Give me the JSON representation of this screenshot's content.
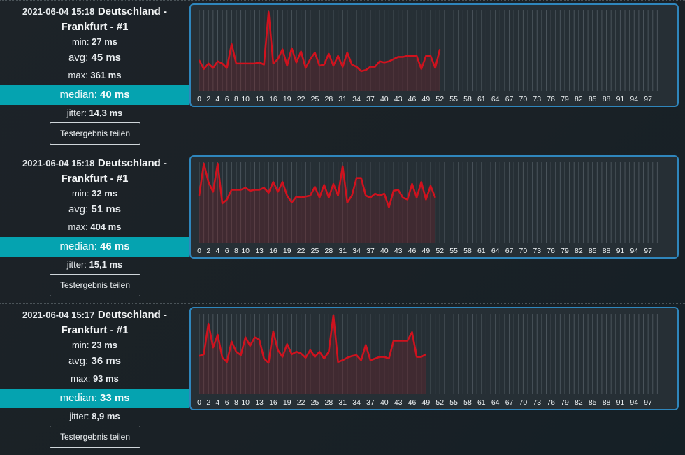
{
  "results": [
    {
      "date": "2021-06-04 15:18",
      "location": "Deutschland - Frankfurt - #1",
      "min_label": "min:",
      "min_value": "27 ms",
      "avg_label": "avg:",
      "avg_value": "45 ms",
      "max_label": "max:",
      "max_value": "361 ms",
      "median_label": "median:",
      "median_value": "40 ms",
      "jitter_label": "jitter:",
      "jitter_value": "14,3 ms",
      "share_label": "Testergebnis teilen"
    },
    {
      "date": "2021-06-04 15:18",
      "location": "Deutschland - Frankfurt - #1",
      "min_label": "min:",
      "min_value": "32 ms",
      "avg_label": "avg:",
      "avg_value": "51 ms",
      "max_label": "max:",
      "max_value": "404 ms",
      "median_label": "median:",
      "median_value": "46 ms",
      "jitter_label": "jitter:",
      "jitter_value": "15,1 ms",
      "share_label": "Testergebnis teilen"
    },
    {
      "date": "2021-06-04 15:17",
      "location": "Deutschland - Frankfurt - #1",
      "min_label": "min:",
      "min_value": "23 ms",
      "avg_label": "avg:",
      "avg_value": "36 ms",
      "max_label": "max:",
      "max_value": "93 ms",
      "median_label": "median:",
      "median_value": "33 ms",
      "jitter_label": "jitter:",
      "jitter_value": "8,9 ms",
      "share_label": "Testergebnis teilen"
    }
  ],
  "colors": {
    "accent": "#05a3b0",
    "chart_border": "#2f86bc",
    "line": "#d0121e",
    "area": "#4a2a30"
  },
  "chart_data": [
    {
      "type": "area",
      "ylim": [
        0,
        361
      ],
      "x_tick_labels": [
        "0",
        "2",
        "4",
        "6",
        "8",
        "10",
        "13",
        "16",
        "19",
        "22",
        "25",
        "28",
        "31",
        "34",
        "37",
        "40",
        "43",
        "46",
        "49",
        "52",
        "55",
        "58",
        "61",
        "64",
        "67",
        "70",
        "73",
        "76",
        "79",
        "82",
        "85",
        "88",
        "91",
        "94",
        "97"
      ],
      "x_slots": 100,
      "series": [
        {
          "values": [
            140,
            100,
            125,
            105,
            135,
            125,
            105,
            214,
            125,
            125,
            125,
            125,
            125,
            130,
            120,
            361,
            125,
            145,
            190,
            115,
            195,
            130,
            180,
            105,
            145,
            175,
            115,
            120,
            170,
            115,
            160,
            110,
            175,
            120,
            110,
            90,
            95,
            110,
            110,
            135,
            130,
            135,
            145,
            155,
            155,
            160,
            160,
            160,
            100,
            160,
            160,
            105,
            190
          ]
        }
      ]
    },
    {
      "type": "area",
      "ylim": [
        0,
        404
      ],
      "x_tick_labels": [
        "0",
        "2",
        "4",
        "6",
        "8",
        "10",
        "13",
        "16",
        "19",
        "22",
        "25",
        "28",
        "31",
        "34",
        "37",
        "40",
        "43",
        "46",
        "49",
        "52",
        "55",
        "58",
        "61",
        "64",
        "67",
        "70",
        "73",
        "76",
        "79",
        "82",
        "85",
        "88",
        "91",
        "94",
        "97"
      ],
      "x_slots": 100,
      "series": [
        {
          "values": [
            240,
            404,
            310,
            260,
            404,
            200,
            220,
            270,
            270,
            270,
            280,
            265,
            270,
            270,
            280,
            255,
            310,
            260,
            310,
            240,
            205,
            235,
            230,
            235,
            240,
            285,
            230,
            295,
            230,
            300,
            240,
            390,
            205,
            240,
            330,
            330,
            240,
            230,
            250,
            240,
            250,
            180,
            265,
            270,
            230,
            220,
            300,
            230,
            310,
            220,
            290,
            230
          ]
        }
      ]
    },
    {
      "type": "area",
      "ylim": [
        0,
        93
      ],
      "x_tick_labels": [
        "0",
        "2",
        "4",
        "6",
        "8",
        "10",
        "13",
        "16",
        "19",
        "22",
        "25",
        "28",
        "31",
        "34",
        "37",
        "40",
        "43",
        "46",
        "49",
        "52",
        "55",
        "58",
        "61",
        "64",
        "67",
        "70",
        "73",
        "76",
        "79",
        "82",
        "85",
        "88",
        "91",
        "94",
        "97"
      ],
      "x_slots": 100,
      "series": [
        {
          "values": [
            45,
            47,
            83,
            55,
            70,
            43,
            38,
            62,
            50,
            46,
            67,
            57,
            67,
            64,
            42,
            37,
            74,
            52,
            44,
            59,
            47,
            50,
            48,
            43,
            52,
            44,
            50,
            42,
            50,
            93,
            38,
            40,
            43,
            45,
            46,
            40,
            58,
            40,
            42,
            44,
            44,
            42,
            63,
            63,
            63,
            63,
            73,
            44,
            44,
            47
          ]
        }
      ]
    }
  ]
}
